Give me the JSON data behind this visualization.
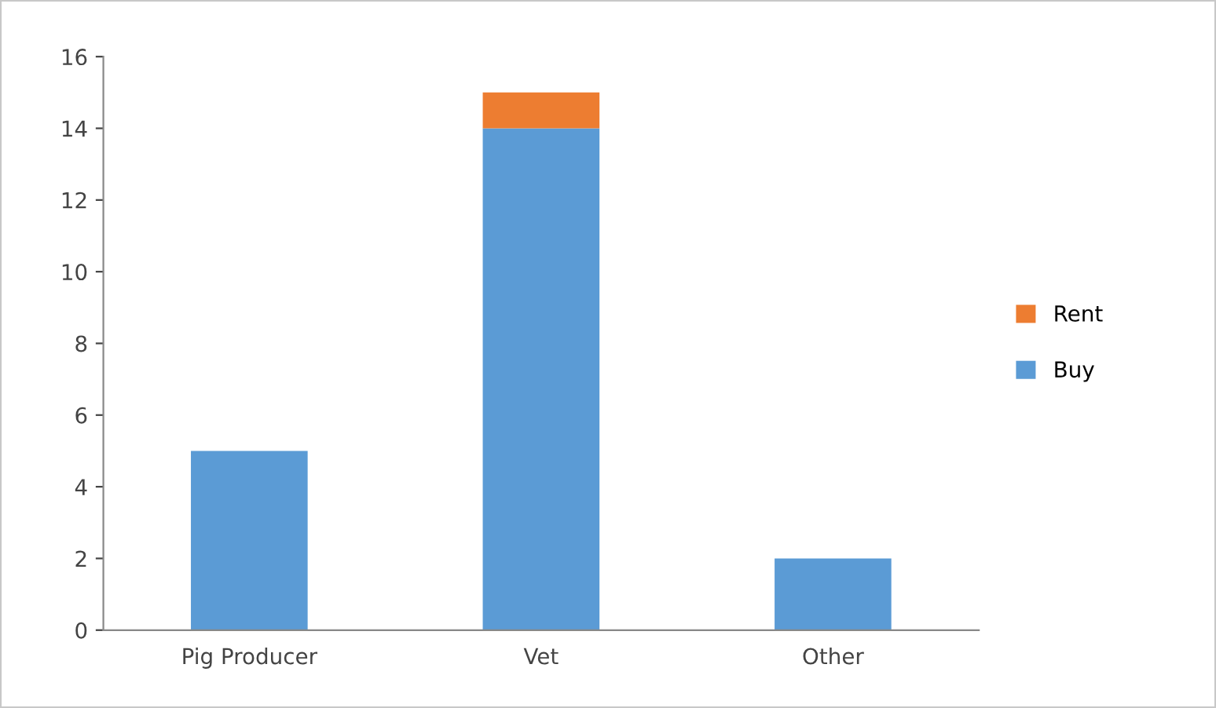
{
  "chart_data": {
    "type": "bar",
    "stacked": true,
    "categories": [
      "Pig Producer",
      "Vet",
      "Other"
    ],
    "series": [
      {
        "name": "Buy",
        "color": "#5b9bd5",
        "values": [
          5,
          14,
          2
        ]
      },
      {
        "name": "Rent",
        "color": "#ed7d31",
        "values": [
          0,
          1,
          0
        ]
      }
    ],
    "ylim": [
      0,
      16
    ],
    "yticks": [
      0,
      2,
      4,
      6,
      8,
      10,
      12,
      14,
      16
    ],
    "grid": false,
    "legend": "right"
  }
}
